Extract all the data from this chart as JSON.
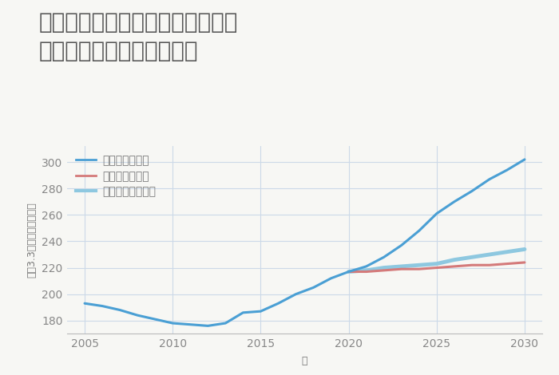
{
  "title_line1": "埼玉県さいたま市見沼区南中野の",
  "title_line2": "中古マンションの価格推移",
  "xlabel": "年",
  "ylabel": "坪（3.3㎡）単価（万円）",
  "background_color": "#f7f7f4",
  "plot_bg_color": "#f7f7f4",
  "xlim": [
    2004,
    2031
  ],
  "ylim": [
    170,
    312
  ],
  "yticks": [
    180,
    200,
    220,
    240,
    260,
    280,
    300
  ],
  "xticks": [
    2005,
    2010,
    2015,
    2020,
    2025,
    2030
  ],
  "grid_color": "#ccd9e8",
  "series": {
    "good": {
      "label": "グッドシナリオ",
      "color": "#4a9fd4",
      "linewidth": 2.2,
      "x": [
        2005,
        2006,
        2007,
        2008,
        2009,
        2010,
        2011,
        2012,
        2013,
        2014,
        2015,
        2016,
        2017,
        2018,
        2019,
        2020,
        2021,
        2022,
        2023,
        2024,
        2025,
        2026,
        2027,
        2028,
        2029,
        2030
      ],
      "y": [
        193,
        191,
        188,
        184,
        181,
        178,
        177,
        176,
        178,
        186,
        187,
        193,
        200,
        205,
        212,
        217,
        221,
        228,
        237,
        248,
        261,
        270,
        278,
        287,
        294,
        302
      ]
    },
    "bad": {
      "label": "バッドシナリオ",
      "color": "#d47a7a",
      "linewidth": 2.2,
      "x": [
        2020,
        2021,
        2022,
        2023,
        2024,
        2025,
        2026,
        2027,
        2028,
        2029,
        2030
      ],
      "y": [
        217,
        217,
        218,
        219,
        219,
        220,
        221,
        222,
        222,
        223,
        224
      ]
    },
    "normal": {
      "label": "ノーマルシナリオ",
      "color": "#8ec8e0",
      "linewidth": 3.5,
      "x": [
        2020,
        2021,
        2022,
        2023,
        2024,
        2025,
        2026,
        2027,
        2028,
        2029,
        2030
      ],
      "y": [
        217,
        218,
        220,
        221,
        222,
        223,
        226,
        228,
        230,
        232,
        234
      ]
    }
  },
  "title_color": "#555555",
  "title_fontsize": 20,
  "axis_label_color": "#777777",
  "tick_color": "#888888",
  "tick_fontsize": 10
}
